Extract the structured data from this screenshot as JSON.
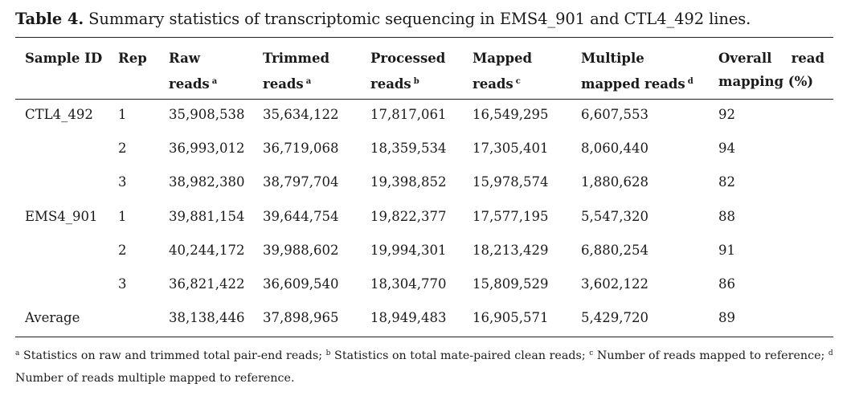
{
  "caption": {
    "label": "Table 4.",
    "text": " Summary statistics of transcriptomic sequencing in EMS4_901 and CTL4_492 lines."
  },
  "headers": {
    "sample_id": "Sample ID",
    "rep": "Rep",
    "raw_line1": "Raw",
    "raw_line2": "reads",
    "raw_sup": "a",
    "trimmed_line1": "Trimmed",
    "trimmed_line2": "reads",
    "trimmed_sup": "a",
    "processed_line1": "Processed",
    "processed_line2": "reads",
    "processed_sup": "b",
    "mapped_line1": "Mapped",
    "mapped_line2": "reads",
    "mapped_sup": "c",
    "multiple_line1": "Multiple",
    "multiple_line2": "mapped reads",
    "multiple_sup": "d",
    "overall_word1": "Overall",
    "overall_word2": "read",
    "overall_line2": "mapping (%)"
  },
  "rows": [
    {
      "sample": "CTL4_492",
      "rep": "1",
      "raw": "35,908,538",
      "trimmed": "35,634,122",
      "processed": "17,817,061",
      "mapped": "16,549,295",
      "multiple": "6,607,553",
      "overall": "92"
    },
    {
      "sample": "",
      "rep": "2",
      "raw": "36,993,012",
      "trimmed": "36,719,068",
      "processed": "18,359,534",
      "mapped": "17,305,401",
      "multiple": "8,060,440",
      "overall": "94"
    },
    {
      "sample": "",
      "rep": "3",
      "raw": "38,982,380",
      "trimmed": "38,797,704",
      "processed": "19,398,852",
      "mapped": "15,978,574",
      "multiple": "1,880,628",
      "overall": "82"
    },
    {
      "sample": "EMS4_901",
      "rep": "1",
      "raw": "39,881,154",
      "trimmed": "39,644,754",
      "processed": "19,822,377",
      "mapped": "17,577,195",
      "multiple": "5,547,320",
      "overall": "88"
    },
    {
      "sample": "",
      "rep": "2",
      "raw": "40,244,172",
      "trimmed": "39,988,602",
      "processed": "19,994,301",
      "mapped": "18,213,429",
      "multiple": "6,880,254",
      "overall": "91"
    },
    {
      "sample": "",
      "rep": "3",
      "raw": "36,821,422",
      "trimmed": "36,609,540",
      "processed": "18,304,770",
      "mapped": "15,809,529",
      "multiple": "3,602,122",
      "overall": "86"
    },
    {
      "sample": "Average",
      "rep": "",
      "raw": "38,138,446",
      "trimmed": "37,898,965",
      "processed": "18,949,483",
      "mapped": "16,905,571",
      "multiple": "5,429,720",
      "overall": "89"
    }
  ],
  "footnotes": {
    "a_mark": "a",
    "a_text": " Statistics on raw and trimmed total pair-end reads; ",
    "b_mark": "b",
    "b_text": " Statistics on total mate-paired clean reads; ",
    "c_mark": "c",
    "c_text": " Number of reads mapped to reference; ",
    "d_mark": "d",
    "d_text": " Number of reads multiple mapped to reference."
  }
}
